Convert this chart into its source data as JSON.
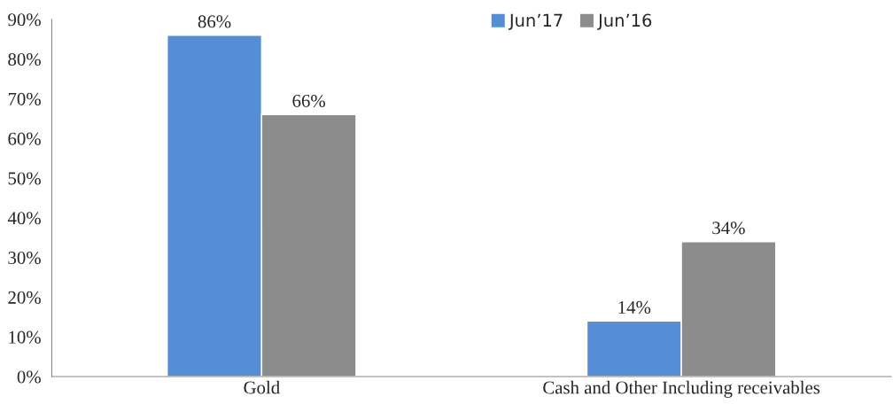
{
  "chart_data": {
    "type": "bar",
    "categories": [
      "Gold",
      "Cash and Other Including receivables"
    ],
    "series": [
      {
        "name": "Jun’17",
        "color": "#558ed5",
        "values": [
          86,
          14
        ],
        "value_labels": [
          "86%",
          "14%"
        ]
      },
      {
        "name": "Jun’16",
        "color": "#8c8c8c",
        "values": [
          66,
          34
        ],
        "value_labels": [
          "66%",
          "34%"
        ]
      }
    ],
    "ylim": [
      0,
      90
    ],
    "yticks": [
      {
        "value": 0,
        "label": "0%"
      },
      {
        "value": 10,
        "label": "10%"
      },
      {
        "value": 20,
        "label": "20%"
      },
      {
        "value": 30,
        "label": "30%"
      },
      {
        "value": 40,
        "label": "40%"
      },
      {
        "value": 50,
        "label": "50%"
      },
      {
        "value": 60,
        "label": "60%"
      },
      {
        "value": 70,
        "label": "70%"
      },
      {
        "value": 80,
        "label": "80%"
      },
      {
        "value": 90,
        "label": "90%"
      }
    ],
    "grid": false,
    "legend": "top"
  }
}
